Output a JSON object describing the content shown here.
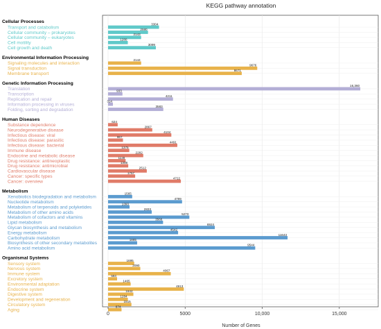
{
  "chart_data": {
    "type": "bar",
    "orientation": "horizontal",
    "title": "KEGG pathway annotation",
    "xlabel": "Number of Genes",
    "xlim": [
      0,
      17300
    ],
    "xticks": [
      0,
      5000,
      10000,
      15000
    ],
    "xtick_labels": [
      "0",
      "5000",
      "10,000",
      "15,000"
    ],
    "grid": true,
    "groups": [
      {
        "name": "Cellular Processes",
        "color": "#5fc9c9",
        "items": [
          {
            "label": "Transport and catabolism",
            "value": 3304,
            "value_label": "3304"
          },
          {
            "label": "Cellular community – prokaryotes",
            "value": 2590,
            "value_label": "2590"
          },
          {
            "label": "Cellular community – eukaryotes",
            "value": 2143,
            "value_label": "2143"
          },
          {
            "label": "Cell motility",
            "value": 1280,
            "value_label": "1280"
          },
          {
            "label": "Cell growth and death",
            "value": 3099,
            "value_label": "3099"
          }
        ]
      },
      {
        "name": "Environmental Information Processing",
        "color": "#e8b24a",
        "items": [
          {
            "label": "Signaling molecules and interaction",
            "value": 2144,
            "value_label": "2144"
          },
          {
            "label": "Signal transduction",
            "value": 9676,
            "value_label": "9676"
          },
          {
            "label": "Membrane transport",
            "value": 8671,
            "value_label": "8671"
          }
        ]
      },
      {
        "name": "Genetic Information Processing",
        "color": "#b3aed6",
        "items": [
          {
            "label": "Translation",
            "value": 16360,
            "value_label": "16,360"
          },
          {
            "label": "Transcription",
            "value": 933,
            "value_label": "933"
          },
          {
            "label": "Replication and repair",
            "value": 4211,
            "value_label": "4211"
          },
          {
            "label": "Information processing in viruses",
            "value": 314,
            "value_label": "314"
          },
          {
            "label": "Folding, sorting and degradation",
            "value": 3583,
            "value_label": "3583"
          }
        ]
      },
      {
        "name": "Human Diseases",
        "color": "#e07b68",
        "items": [
          {
            "label": "Substance dependence",
            "value": 624,
            "value_label": "624"
          },
          {
            "label": "Neurodegenerative disease",
            "value": 2867,
            "value_label": "2867"
          },
          {
            "label": "Infectious disease: viral",
            "value": 4104,
            "value_label": "4104"
          },
          {
            "label": "Infectious disease: parasitic",
            "value": 967,
            "value_label": "967"
          },
          {
            "label": "Infectious disease: bacterial",
            "value": 4491,
            "value_label": "4491"
          },
          {
            "label": "Immune disease",
            "value": 1375,
            "value_label": "1375"
          },
          {
            "label": "Endocrine and metabolic disease",
            "value": 2282,
            "value_label": "2282"
          },
          {
            "label": "Drug resistance: antineoplastic",
            "value": 1139,
            "value_label": "1139"
          },
          {
            "label": "Drug resistance: antimicrobial",
            "value": 1308,
            "value_label": "1308"
          },
          {
            "label": "Cardiovascular disease",
            "value": 2512,
            "value_label": "2512"
          },
          {
            "label": "Cancer: specific types",
            "value": 1757,
            "value_label": "1757"
          },
          {
            "label": "Cancer: overview",
            "value": 4722,
            "value_label": "4722"
          }
        ]
      },
      {
        "name": "Metabolism",
        "color": "#5b9bcf",
        "items": [
          {
            "label": "Xenobiotics biodegradation and metabolism",
            "value": 1565,
            "value_label": "1565"
          },
          {
            "label": "Nucleotide metabolism",
            "value": 4799,
            "value_label": "4799"
          },
          {
            "label": "Metabolism of terpenoids and polyketides",
            "value": 1393,
            "value_label": "1393"
          },
          {
            "label": "Metabolism of other amino acids",
            "value": 2833,
            "value_label": "2833"
          },
          {
            "label": "Metabolism of cofactors and vitamins",
            "value": 5273,
            "value_label": "5273"
          },
          {
            "label": "Lipid metabolism",
            "value": 3566,
            "value_label": "3566"
          },
          {
            "label": "Glycan biosynthesis and metabolism",
            "value": 6924,
            "value_label": "6924"
          },
          {
            "label": "Energy metabolism",
            "value": 4542,
            "value_label": "4542"
          },
          {
            "label": "Carbohydrate metabolism",
            "value": 11643,
            "value_label": "11643"
          },
          {
            "label": "Biosynthesis of other secondary metabolites",
            "value": 1885,
            "value_label": "1885"
          },
          {
            "label": "Amino acid metabolism",
            "value": 9544,
            "value_label": "9544"
          }
        ]
      },
      {
        "name": "Organismal Systems",
        "color": "#e8b24a",
        "items": [
          {
            "label": "Sensory system",
            "value": 1695,
            "value_label": "1695"
          },
          {
            "label": "Nervous system",
            "value": 2090,
            "value_label": "2090"
          },
          {
            "label": "Immune system",
            "value": 4067,
            "value_label": "4067"
          },
          {
            "label": "Excretory system",
            "value": 584,
            "value_label": "584"
          },
          {
            "label": "Environmental adaptation",
            "value": 1465,
            "value_label": "1465"
          },
          {
            "label": "Endocrine system",
            "value": 4913,
            "value_label": "4913"
          },
          {
            "label": "Digestive system",
            "value": 1642,
            "value_label": "1642"
          },
          {
            "label": "Development and regeneration",
            "value": 1284,
            "value_label": "1284"
          },
          {
            "label": "Circulatory system",
            "value": 1515,
            "value_label": "1515"
          },
          {
            "label": "Aging",
            "value": 874,
            "value_label": "874"
          }
        ]
      }
    ]
  }
}
